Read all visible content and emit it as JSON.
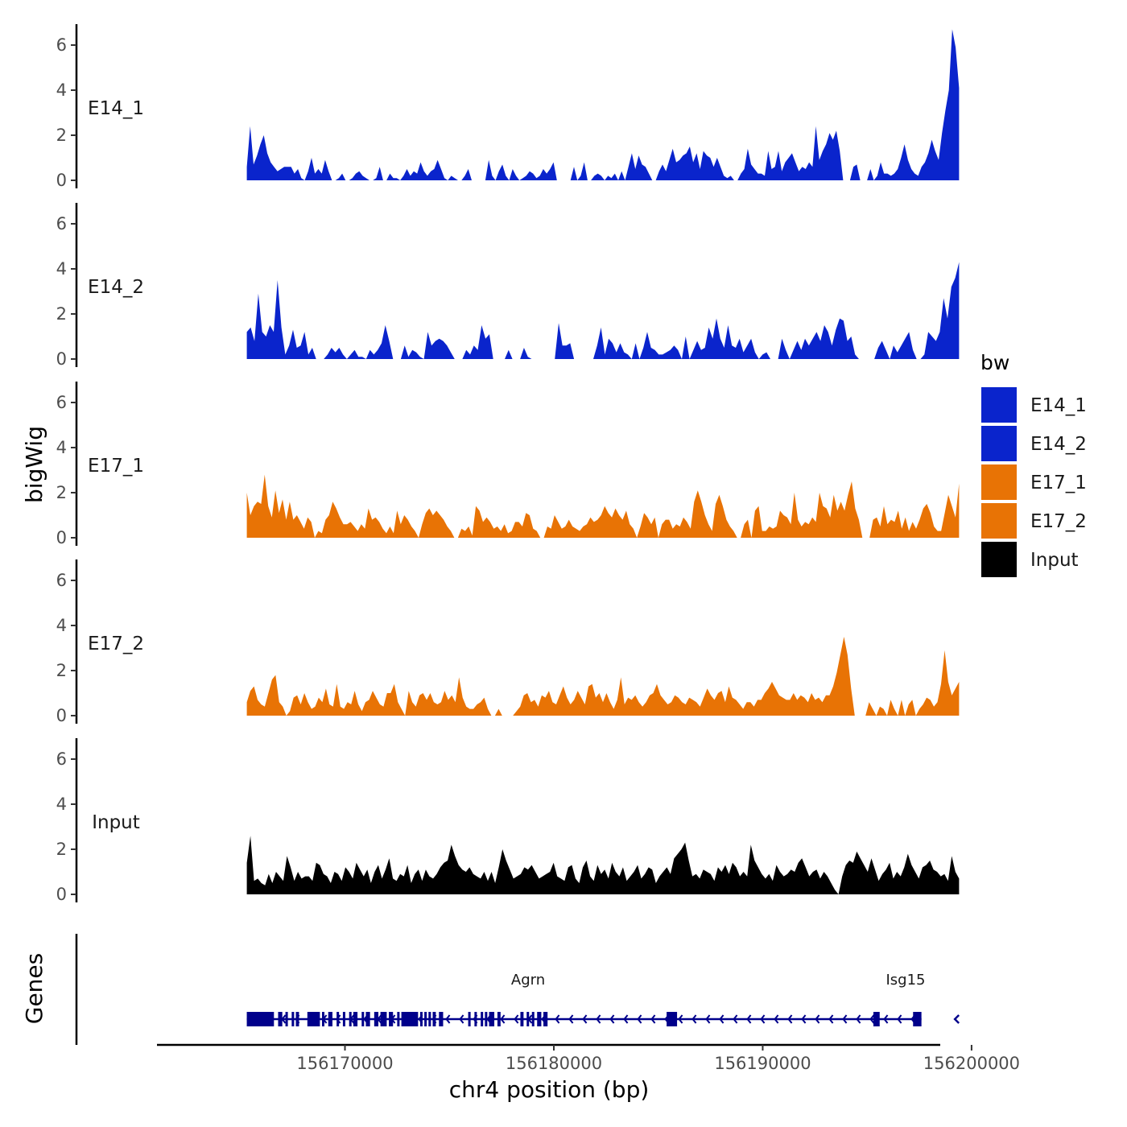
{
  "chart_data": {
    "type": "area",
    "title": "",
    "ylabel": "bigWig",
    "genes_label": "Genes",
    "xlabel": "chr4 position (bp)",
    "xlim": [
      156161000,
      156198500
    ],
    "ylim": [
      0,
      7
    ],
    "data_range": [
      156165300,
      156199400
    ],
    "y_ticks": [
      0,
      2,
      4,
      6
    ],
    "x_ticks": [
      156170000,
      156180000,
      156190000,
      156200000
    ],
    "x_tick_labels": [
      "156170000",
      "156180000",
      "156190000",
      "156200000"
    ],
    "legend": {
      "title": "bw",
      "position": "right",
      "items": [
        {
          "label": "E14_1",
          "color": "#0A24CC"
        },
        {
          "label": "E14_2",
          "color": "#0A24CC"
        },
        {
          "label": "E17_1",
          "color": "#E87305"
        },
        {
          "label": "E17_2",
          "color": "#E87305"
        },
        {
          "label": "Input",
          "color": "#000000"
        }
      ]
    },
    "series": [
      {
        "name": "E14_1",
        "color": "#0A24CC",
        "values": [
          0.6,
          2.4,
          0.7,
          1.1,
          1.6,
          2.0,
          1.2,
          0.8,
          0.6,
          0.4,
          0.5,
          0.6,
          0.6,
          0.6,
          0.3,
          0.5,
          0.1,
          0.0,
          0.4,
          1.0,
          0.3,
          0.5,
          0.3,
          0.9,
          0.4,
          0.0,
          0.0,
          0.1,
          0.3,
          0.0,
          0.0,
          0.1,
          0.3,
          0.4,
          0.2,
          0.1,
          0.0,
          0.0,
          0.1,
          0.6,
          0.0,
          0.0,
          0.3,
          0.1,
          0.1,
          0.0,
          0.2,
          0.5,
          0.2,
          0.4,
          0.3,
          0.8,
          0.4,
          0.2,
          0.4,
          0.5,
          0.9,
          0.5,
          0.1,
          0.0,
          0.2,
          0.1,
          0.0,
          0.0,
          0.2,
          0.5,
          0.0,
          0.0,
          0.0,
          0.0,
          0.0,
          0.9,
          0.2,
          0.0,
          0.4,
          0.7,
          0.2,
          0.0,
          0.5,
          0.2,
          0.0,
          0.1,
          0.2,
          0.4,
          0.3,
          0.1,
          0.2,
          0.5,
          0.3,
          0.5,
          0.8,
          0.0,
          0.0,
          0.0,
          0.0,
          0.0,
          0.6,
          0.0,
          0.2,
          0.8,
          0.0,
          0.0,
          0.2,
          0.3,
          0.2,
          0.0,
          0.2,
          0.1,
          0.3,
          0.0,
          0.4,
          0.0,
          0.6,
          1.2,
          0.5,
          1.1,
          0.7,
          0.6,
          0.3,
          0.0,
          0.0,
          0.4,
          0.7,
          0.4,
          0.9,
          1.4,
          0.8,
          0.9,
          1.1,
          1.2,
          1.5,
          0.8,
          1.2,
          0.5,
          1.3,
          1.1,
          1.0,
          0.6,
          1.0,
          0.6,
          0.2,
          0.1,
          0.2,
          0.0,
          0.0,
          0.3,
          0.5,
          1.4,
          0.7,
          0.5,
          0.3,
          0.3,
          0.2,
          1.3,
          0.5,
          0.6,
          1.3,
          0.4,
          0.8,
          1.0,
          1.2,
          0.8,
          0.4,
          0.6,
          0.5,
          0.8,
          0.6,
          2.4,
          0.9,
          1.3,
          1.6,
          2.1,
          1.8,
          2.2,
          1.3,
          0.0,
          0.0,
          0.0,
          0.6,
          0.7,
          0.0,
          0.0,
          0.0,
          0.5,
          0.0,
          0.2,
          0.8,
          0.3,
          0.3,
          0.2,
          0.3,
          0.5,
          1.0,
          1.6,
          0.9,
          0.5,
          0.3,
          0.2,
          0.6,
          0.8,
          1.2,
          1.8,
          1.3,
          0.9,
          2.1,
          3.1,
          4.0,
          6.7,
          5.9,
          4.1
        ]
      },
      {
        "name": "E14_2",
        "color": "#0A24CC",
        "values": [
          1.2,
          1.4,
          0.8,
          2.9,
          1.2,
          1.0,
          1.5,
          1.2,
          3.5,
          1.4,
          0.2,
          0.6,
          1.3,
          0.5,
          0.6,
          1.2,
          0.2,
          0.5,
          0.0,
          0.0,
          0.0,
          0.2,
          0.5,
          0.3,
          0.5,
          0.2,
          0.0,
          0.2,
          0.4,
          0.1,
          0.1,
          0.0,
          0.4,
          0.2,
          0.4,
          0.7,
          1.5,
          0.8,
          0.0,
          0.0,
          0.0,
          0.6,
          0.1,
          0.4,
          0.3,
          0.1,
          0.0,
          1.2,
          0.6,
          0.8,
          0.9,
          0.8,
          0.6,
          0.3,
          0.0,
          0.0,
          0.0,
          0.4,
          0.2,
          0.6,
          0.4,
          1.5,
          0.9,
          1.1,
          0.0,
          0.0,
          0.0,
          0.0,
          0.4,
          0.0,
          0.0,
          0.0,
          0.5,
          0.1,
          0.0,
          0.0,
          0.0,
          0.0,
          0.0,
          0.0,
          0.0,
          1.6,
          0.6,
          0.6,
          0.7,
          0.0,
          0.0,
          0.0,
          0.0,
          0.0,
          0.0,
          0.6,
          1.4,
          0.2,
          0.9,
          0.7,
          0.3,
          0.7,
          0.3,
          0.2,
          0.0,
          0.7,
          0.0,
          0.5,
          1.2,
          0.5,
          0.4,
          0.2,
          0.2,
          0.3,
          0.4,
          0.6,
          0.4,
          0.0,
          1.0,
          0.0,
          0.4,
          0.8,
          0.4,
          0.5,
          1.4,
          0.9,
          1.8,
          0.9,
          0.5,
          1.5,
          0.6,
          0.5,
          0.9,
          0.3,
          0.6,
          0.9,
          0.3,
          0.0,
          0.2,
          0.3,
          0.0,
          0.0,
          0.0,
          0.9,
          0.4,
          0.0,
          0.4,
          0.8,
          0.4,
          0.9,
          0.6,
          0.9,
          1.2,
          0.8,
          1.5,
          1.2,
          0.6,
          1.3,
          1.8,
          1.7,
          0.8,
          1.0,
          0.2,
          0.0,
          0.0,
          0.0,
          0.0,
          0.0,
          0.5,
          0.8,
          0.4,
          0.0,
          0.6,
          0.3,
          0.6,
          0.9,
          1.2,
          0.4,
          0.0,
          0.0,
          0.2,
          1.2,
          1.0,
          0.8,
          1.2,
          2.7,
          1.8,
          3.2,
          3.6,
          4.3
        ]
      },
      {
        "name": "E17_1",
        "color": "#E87305",
        "values": [
          2.0,
          1.0,
          1.4,
          1.6,
          1.5,
          2.8,
          1.4,
          0.9,
          2.1,
          1.1,
          1.7,
          0.8,
          1.6,
          0.8,
          1.0,
          0.7,
          0.4,
          0.9,
          0.7,
          0.0,
          0.3,
          0.2,
          0.8,
          1.0,
          1.6,
          1.3,
          0.9,
          0.6,
          0.6,
          0.7,
          0.5,
          0.3,
          0.6,
          0.4,
          1.3,
          0.8,
          0.9,
          0.7,
          0.4,
          0.2,
          0.5,
          0.2,
          1.2,
          0.6,
          1.0,
          0.8,
          0.5,
          0.3,
          0.0,
          0.6,
          1.1,
          1.3,
          1.0,
          1.2,
          1.0,
          0.8,
          0.5,
          0.3,
          0.0,
          0.0,
          0.4,
          0.3,
          0.5,
          0.1,
          1.4,
          1.2,
          0.7,
          0.9,
          0.7,
          0.4,
          0.5,
          0.3,
          0.6,
          0.2,
          0.3,
          0.7,
          0.7,
          0.5,
          1.1,
          1.0,
          0.4,
          0.3,
          0.0,
          0.0,
          0.5,
          0.4,
          1.0,
          0.7,
          0.4,
          0.5,
          0.8,
          0.5,
          0.4,
          0.3,
          0.5,
          0.6,
          0.9,
          0.7,
          0.8,
          1.0,
          1.4,
          1.1,
          0.9,
          1.3,
          1.0,
          0.8,
          1.2,
          0.6,
          0.4,
          0.0,
          0.5,
          1.1,
          0.9,
          0.6,
          0.9,
          0.0,
          0.6,
          0.8,
          0.8,
          0.4,
          0.6,
          0.5,
          0.9,
          0.7,
          0.4,
          1.6,
          2.1,
          1.6,
          1.0,
          0.6,
          0.3,
          1.5,
          1.9,
          1.4,
          0.8,
          0.5,
          0.3,
          0.0,
          0.0,
          0.6,
          0.8,
          0.0,
          1.2,
          1.4,
          0.3,
          0.3,
          0.5,
          0.4,
          0.5,
          1.2,
          1.0,
          0.9,
          0.6,
          2.0,
          0.8,
          0.5,
          0.7,
          0.6,
          0.9,
          0.7,
          2.0,
          1.4,
          1.3,
          0.9,
          1.9,
          1.2,
          1.6,
          1.2,
          1.9,
          2.5,
          1.3,
          0.8,
          0.0,
          0.0,
          0.0,
          0.8,
          0.9,
          0.5,
          1.4,
          0.6,
          0.8,
          0.7,
          1.2,
          0.4,
          0.9,
          0.3,
          0.7,
          0.4,
          0.8,
          1.3,
          1.5,
          1.1,
          0.5,
          0.3,
          0.3,
          1.1,
          1.9,
          1.4,
          0.9,
          2.4
        ]
      },
      {
        "name": "E17_2",
        "color": "#E87305",
        "values": [
          0.6,
          1.1,
          1.3,
          0.7,
          0.5,
          0.4,
          1.0,
          1.6,
          1.8,
          0.6,
          0.4,
          0.0,
          0.2,
          0.8,
          0.9,
          0.5,
          1.0,
          0.6,
          0.3,
          0.4,
          0.8,
          0.6,
          1.2,
          0.5,
          0.4,
          1.4,
          0.4,
          0.3,
          0.6,
          0.5,
          1.1,
          0.5,
          0.2,
          0.6,
          0.7,
          1.1,
          0.8,
          0.5,
          0.4,
          1.0,
          1.0,
          1.4,
          0.6,
          0.3,
          0.0,
          1.1,
          0.6,
          0.4,
          0.9,
          1.0,
          0.7,
          1.0,
          0.6,
          0.5,
          0.6,
          1.1,
          0.7,
          0.9,
          0.6,
          1.7,
          0.8,
          0.4,
          0.3,
          0.3,
          0.5,
          0.6,
          0.8,
          0.3,
          0.0,
          0.0,
          0.3,
          0.0,
          0.0,
          0.0,
          0.0,
          0.2,
          0.4,
          0.9,
          1.0,
          0.6,
          0.7,
          0.4,
          0.9,
          0.8,
          1.1,
          0.6,
          0.5,
          0.9,
          1.3,
          0.8,
          0.5,
          0.7,
          1.1,
          0.8,
          0.5,
          1.3,
          1.4,
          0.8,
          1.0,
          0.6,
          1.0,
          0.6,
          0.3,
          0.7,
          1.7,
          0.5,
          0.8,
          0.7,
          0.9,
          0.6,
          0.4,
          0.6,
          0.9,
          1.0,
          1.4,
          0.9,
          0.7,
          0.5,
          0.6,
          0.9,
          0.8,
          0.6,
          0.5,
          0.8,
          0.7,
          0.6,
          0.4,
          0.8,
          1.2,
          0.9,
          0.7,
          1.0,
          1.1,
          0.6,
          1.3,
          0.8,
          0.7,
          0.5,
          0.3,
          0.6,
          0.6,
          0.4,
          0.7,
          0.7,
          1.0,
          1.2,
          1.5,
          1.2,
          0.9,
          0.8,
          0.7,
          0.7,
          1.0,
          0.7,
          0.9,
          0.8,
          0.6,
          1.0,
          0.7,
          0.8,
          0.6,
          0.9,
          0.9,
          1.3,
          1.9,
          2.7,
          3.5,
          2.7,
          1.2,
          0.0,
          0.0,
          0.0,
          0.0,
          0.6,
          0.3,
          0.0,
          0.4,
          0.3,
          0.0,
          0.7,
          0.3,
          0.0,
          0.7,
          0.0,
          0.5,
          0.7,
          0.0,
          0.3,
          0.5,
          0.8,
          0.7,
          0.4,
          0.6,
          1.4,
          2.9,
          1.5,
          0.9,
          1.2,
          1.5
        ]
      },
      {
        "name": "Input",
        "color": "#000000",
        "values": [
          1.4,
          2.6,
          0.6,
          0.7,
          0.5,
          0.4,
          0.9,
          0.5,
          1.0,
          0.8,
          0.6,
          1.7,
          1.2,
          0.6,
          1.0,
          0.7,
          0.8,
          0.8,
          0.6,
          1.4,
          1.3,
          0.9,
          0.8,
          0.5,
          1.0,
          0.9,
          0.6,
          1.2,
          1.0,
          0.7,
          1.4,
          1.1,
          0.8,
          1.1,
          0.5,
          1.0,
          1.3,
          0.7,
          1.1,
          1.6,
          0.7,
          0.6,
          0.9,
          0.8,
          1.3,
          0.5,
          0.9,
          1.1,
          0.6,
          1.1,
          0.8,
          0.7,
          0.9,
          1.2,
          1.4,
          1.5,
          2.2,
          1.7,
          1.3,
          1.1,
          1.0,
          1.2,
          0.9,
          0.8,
          0.7,
          1.0,
          0.6,
          1.0,
          0.5,
          1.2,
          2.0,
          1.5,
          1.1,
          0.7,
          0.8,
          0.9,
          1.2,
          1.1,
          1.3,
          1.0,
          0.7,
          0.8,
          0.9,
          1.0,
          1.4,
          0.8,
          0.7,
          0.6,
          1.2,
          1.3,
          0.7,
          0.5,
          1.2,
          1.5,
          0.8,
          0.6,
          1.3,
          0.9,
          1.1,
          0.7,
          1.4,
          1.0,
          0.8,
          1.2,
          0.6,
          0.8,
          1.0,
          1.3,
          0.7,
          0.9,
          1.2,
          1.1,
          0.5,
          0.8,
          1.0,
          1.2,
          0.9,
          1.6,
          1.8,
          2.0,
          2.3,
          1.5,
          0.8,
          0.9,
          0.7,
          1.1,
          1.0,
          0.9,
          0.6,
          1.2,
          1.0,
          1.3,
          0.9,
          1.4,
          1.2,
          0.8,
          1.0,
          0.8,
          2.2,
          1.5,
          1.2,
          0.9,
          0.7,
          0.9,
          0.6,
          1.3,
          1.0,
          0.8,
          0.9,
          1.1,
          1.0,
          1.4,
          1.6,
          1.2,
          0.8,
          1.0,
          1.1,
          0.7,
          1.0,
          0.8,
          0.5,
          0.2,
          0.0,
          0.8,
          1.3,
          1.5,
          1.4,
          1.9,
          1.6,
          1.3,
          1.0,
          1.6,
          1.1,
          0.6,
          0.9,
          1.1,
          1.4,
          0.7,
          1.0,
          0.8,
          1.2,
          1.8,
          1.3,
          1.0,
          0.7,
          1.2,
          1.3,
          1.5,
          1.1,
          1.0,
          0.8,
          0.9,
          0.6,
          1.7,
          1.0,
          0.7
        ]
      }
    ],
    "genes": [
      {
        "name": "Agrn",
        "start": 156165300,
        "end": 156197600,
        "strand": "-",
        "exons": [
          [
            156165300,
            156166600
          ],
          [
            156166800,
            156167000
          ],
          [
            156167150,
            156167250
          ],
          [
            156167450,
            156167550
          ],
          [
            156167650,
            156167800
          ],
          [
            156168200,
            156168800
          ],
          [
            156168900,
            156169000
          ],
          [
            156169200,
            156169400
          ],
          [
            156169600,
            156169700
          ],
          [
            156169900,
            156170000
          ],
          [
            156170200,
            156170300
          ],
          [
            156170400,
            156170600
          ],
          [
            156170800,
            156170900
          ],
          [
            156171000,
            156171200
          ],
          [
            156171400,
            156171600
          ],
          [
            156171700,
            156172000
          ],
          [
            156172100,
            156172300
          ],
          [
            156172500,
            156172600
          ],
          [
            156172700,
            156173500
          ],
          [
            156173600,
            156173700
          ],
          [
            156173800,
            156173900
          ],
          [
            156174000,
            156174100
          ],
          [
            156174200,
            156174350
          ],
          [
            156174500,
            156174700
          ],
          [
            156175900,
            156176000
          ],
          [
            156176200,
            156176300
          ],
          [
            156176500,
            156176600
          ],
          [
            156176700,
            156176800
          ],
          [
            156176900,
            156177150
          ],
          [
            156177300,
            156177450
          ],
          [
            156178400,
            156178550
          ],
          [
            156178700,
            156178800
          ],
          [
            156178950,
            156179050
          ],
          [
            156179200,
            156179400
          ],
          [
            156179500,
            156179700
          ],
          [
            156185400,
            156185900
          ],
          [
            156195300,
            156195600
          ],
          [
            156197200,
            156197600
          ]
        ]
      },
      {
        "name": "Isg15",
        "start": 156199200,
        "end": 156199400,
        "strand": "-",
        "exons": []
      }
    ]
  }
}
